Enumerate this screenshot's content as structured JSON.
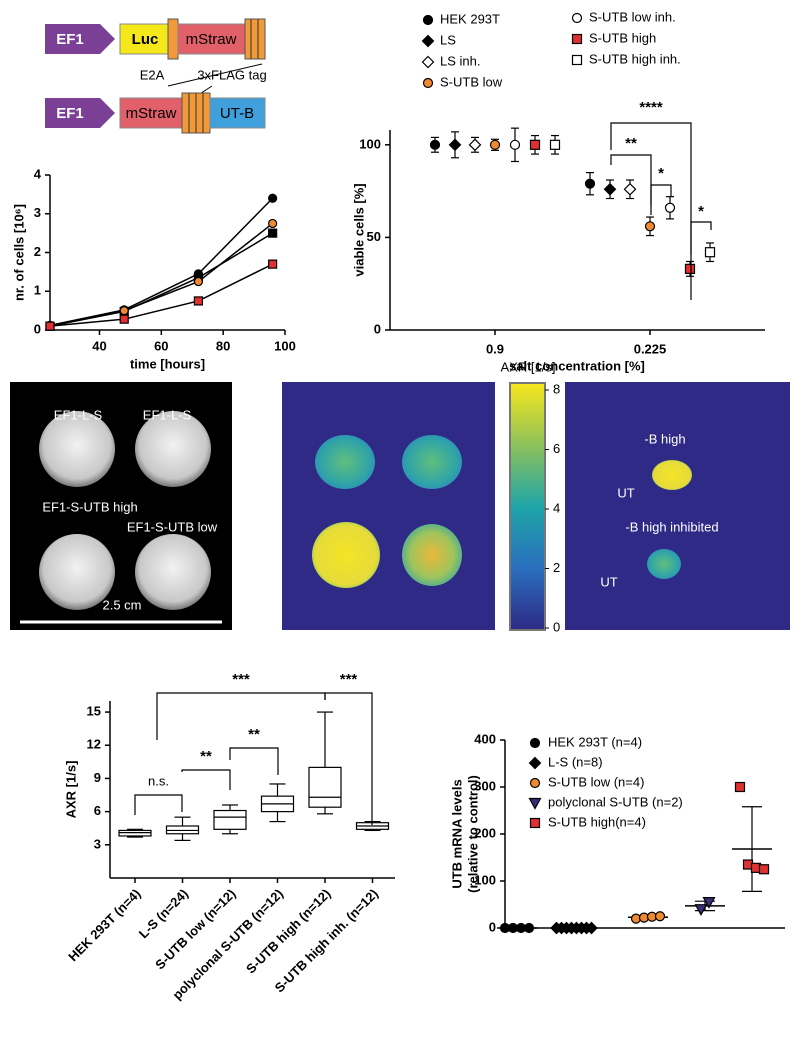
{
  "diagram": {
    "row1": [
      "EF1",
      "Luc",
      "mStraw"
    ],
    "row1_labels": [
      "E2A",
      "3xFLAG tag"
    ],
    "row2": [
      "EF1",
      "mStraw",
      "UT-B"
    ]
  },
  "chart_data": [
    {
      "type": "line",
      "x_label": "time [hours]",
      "y_label": "nr. of cells [10⁶]",
      "x": [
        24,
        48,
        72,
        96
      ],
      "xlim": [
        24,
        100
      ],
      "xticks": [
        40,
        60,
        80,
        100
      ],
      "ylim": [
        0,
        4
      ],
      "yticks": [
        0,
        1,
        2,
        3,
        4
      ],
      "series": [
        {
          "color": "#000000",
          "marker": "circle",
          "values": [
            0.12,
            0.52,
            1.45,
            3.4
          ]
        },
        {
          "color": "#000000",
          "marker": "square",
          "values": [
            0.1,
            0.48,
            1.35,
            2.5
          ]
        },
        {
          "color": "#f08a30",
          "marker": "circle",
          "values": [
            0.1,
            0.5,
            1.25,
            2.75
          ]
        },
        {
          "color": "#e03030",
          "marker": "square",
          "values": [
            0.1,
            0.28,
            0.75,
            1.7
          ]
        }
      ]
    },
    {
      "type": "errorbar",
      "x_label": "salt concentration [%]",
      "y_label": "viable cells [%]",
      "categories": [
        "0.9",
        "0.225"
      ],
      "ylim": [
        0,
        108
      ],
      "yticks": [
        0,
        50,
        100
      ],
      "series": [
        {
          "name": "HEK 293T",
          "color": "#000000",
          "marker": "circle",
          "values": [
            100,
            79
          ],
          "errors": [
            4,
            6
          ]
        },
        {
          "name": "LS",
          "color": "#000000",
          "marker": "diamond",
          "values": [
            100,
            76
          ],
          "errors": [
            7,
            5
          ]
        },
        {
          "name": "LS inh.",
          "color": "#ffffff",
          "marker": "diamond",
          "values": [
            100,
            76
          ],
          "errors": [
            4,
            5
          ]
        },
        {
          "name": "S-UTB low",
          "color": "#f08a30",
          "marker": "circle",
          "values": [
            100,
            56
          ],
          "errors": [
            3,
            5
          ]
        },
        {
          "name": "S-UTB low inh.",
          "color": "#ffffff",
          "marker": "circle",
          "values": [
            100,
            66
          ],
          "errors": [
            9,
            6
          ]
        },
        {
          "name": "S-UTB high",
          "color": "#e03030",
          "marker": "square",
          "values": [
            100,
            33
          ],
          "errors": [
            5,
            4
          ]
        },
        {
          "name": "S-UTB high inh.",
          "color": "#ffffff",
          "marker": "square",
          "values": [
            100,
            42
          ],
          "errors": [
            5,
            5
          ]
        }
      ],
      "annotations": [
        "****",
        "**",
        "*",
        "*"
      ]
    },
    {
      "type": "box",
      "y_label": "AXR [1/s]",
      "categories": [
        "HEK 293T (n=4)",
        "L-S (n=24)",
        "S-UTB low (n=12)",
        "polyclonal S-UTB (n=12)",
        "S-UTB high (n=12)",
        "S-UTB high inh. (n=12)"
      ],
      "ylim": [
        0,
        16
      ],
      "yticks": [
        3,
        6,
        9,
        12,
        15
      ],
      "min": [
        3.7,
        3.4,
        4.0,
        5.1,
        5.8,
        4.3
      ],
      "q1": [
        3.8,
        4.0,
        4.4,
        6.0,
        6.4,
        4.4
      ],
      "median": [
        4.1,
        4.3,
        5.5,
        6.7,
        7.3,
        4.7
      ],
      "q3": [
        4.3,
        4.7,
        6.1,
        7.4,
        10.0,
        5.0
      ],
      "max": [
        4.4,
        5.5,
        6.6,
        8.5,
        15.0,
        5.1
      ],
      "annotations": [
        "n.s.",
        "**",
        "**",
        "***",
        "***"
      ]
    },
    {
      "type": "strip",
      "y_label": [
        "UTB mRNA levels",
        "(relative to control)"
      ],
      "ylim": [
        0,
        400
      ],
      "yticks": [
        0,
        100,
        200,
        300,
        400
      ],
      "series": [
        {
          "name": "HEK 293T (n=4)",
          "color": "#000000",
          "marker": "circle",
          "values": [
            0,
            0,
            0,
            0
          ],
          "mean": 0,
          "sd": 0
        },
        {
          "name": "L-S (n=8)",
          "color": "#000000",
          "marker": "diamond",
          "values": [
            0,
            0,
            0,
            0,
            0,
            0,
            0,
            0
          ],
          "mean": 0,
          "sd": 0
        },
        {
          "name": "S-UTB low (n=4)",
          "color": "#f08a30",
          "marker": "circle",
          "values": [
            20,
            22,
            24,
            25
          ],
          "mean": 23,
          "sd": 2
        },
        {
          "name": "polyclonal S-UTB (n=2)",
          "color": "#3a2d7a",
          "marker": "triangle",
          "values": [
            40,
            55
          ],
          "mean": 47,
          "sd": 10
        },
        {
          "name": "S-UTB high(n=4)",
          "color": "#e03030",
          "marker": "square",
          "values": [
            300,
            135,
            128,
            125
          ],
          "mean": 168,
          "sd": 90
        }
      ]
    }
  ],
  "images": {
    "mri_labels": [
      "EF1-L-S",
      "EF1-L-S",
      "EF1-S-UTB high",
      "EF1-S-UTB low"
    ],
    "scale_bar": "2.5 cm",
    "colorbar": {
      "title": "AXR [1/s]",
      "lim": [
        0,
        8
      ],
      "ticks": [
        0,
        2,
        4,
        6,
        8
      ]
    },
    "map_labels": [
      "-B high",
      "UT",
      "-B high inhibited",
      "UT"
    ]
  }
}
